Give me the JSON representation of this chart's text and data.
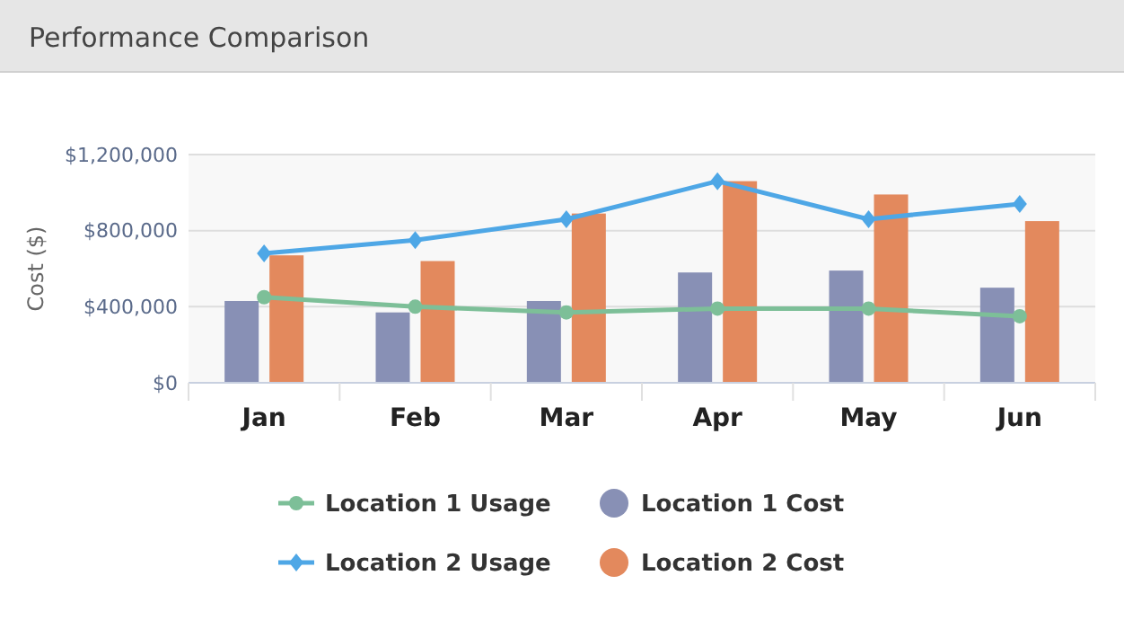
{
  "chart_data": {
    "type": "bar",
    "title": "Performance Comparison",
    "ylabel": "Cost ($)",
    "categories": [
      "Jan",
      "Feb",
      "Mar",
      "Apr",
      "May",
      "Jun"
    ],
    "series": [
      {
        "name": "Location 1 Usage",
        "type": "line",
        "color": "#7dbf98",
        "marker": "circle",
        "values": [
          450000,
          400000,
          370000,
          390000,
          390000,
          350000
        ]
      },
      {
        "name": "Location 1 Cost",
        "color": "#8890b5",
        "values": [
          430000,
          370000,
          430000,
          580000,
          590000,
          500000
        ]
      },
      {
        "name": "Location 2 Usage",
        "type": "line",
        "color": "#4ea7e6",
        "marker": "diamond",
        "values": [
          680000,
          750000,
          860000,
          1060000,
          860000,
          940000
        ]
      },
      {
        "name": "Location 2 Cost",
        "color": "#e3895d",
        "values": [
          670000,
          640000,
          890000,
          1060000,
          990000,
          850000
        ]
      }
    ],
    "ylim": [
      0,
      1200000
    ],
    "yticks": [
      {
        "value": 0,
        "label": "$0"
      },
      {
        "value": 400000,
        "label": "$400,000"
      },
      {
        "value": 800000,
        "label": "$800,000"
      },
      {
        "value": 1200000,
        "label": "$1,200,000"
      }
    ],
    "grid": "y",
    "legend": "bottom"
  }
}
